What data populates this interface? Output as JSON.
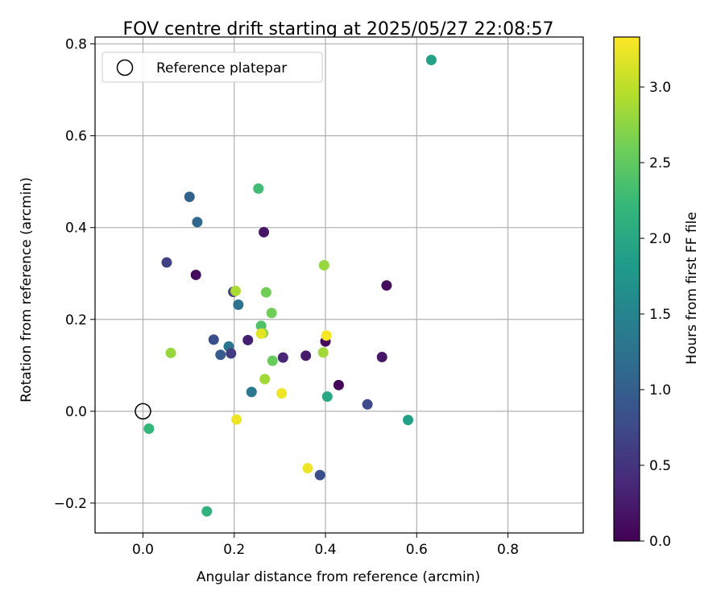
{
  "chart_data": {
    "type": "scatter",
    "title": "FOV centre drift starting at 2025/05/27 22:08:57",
    "xlabel": "Angular distance from reference (arcmin)",
    "ylabel": "Rotation from reference (arcmin)",
    "xlim": [
      -0.105,
      0.965
    ],
    "ylim": [
      -0.265,
      0.815
    ],
    "x_ticks": [
      0.0,
      0.2,
      0.4,
      0.6,
      0.8
    ],
    "x_tick_labels": [
      "0.0",
      "0.2",
      "0.4",
      "0.6",
      "0.8"
    ],
    "y_ticks": [
      -0.2,
      0.0,
      0.2,
      0.4,
      0.6,
      0.8
    ],
    "y_tick_labels": [
      "−0.2",
      "0.0",
      "0.2",
      "0.4",
      "0.6",
      "0.8"
    ],
    "grid": true,
    "legend": {
      "position": "top-left",
      "entries": [
        {
          "label": "Reference platepar",
          "marker": "hollow-circle"
        }
      ]
    },
    "reference_point": {
      "x": 0.0,
      "y": 0.0
    },
    "colorbar": {
      "label": "Hours from first FF file",
      "colormap": "viridis",
      "range": [
        0.0,
        3.33
      ],
      "ticks": [
        0.0,
        0.5,
        1.0,
        1.5,
        2.0,
        2.5,
        3.0
      ],
      "tick_labels": [
        "0.0",
        "0.5",
        "1.0",
        "1.5",
        "2.0",
        "2.5",
        "3.0"
      ]
    },
    "points": [
      {
        "x": 0.632,
        "y": 0.765,
        "c": 1.9
      },
      {
        "x": 0.253,
        "y": 0.485,
        "c": 2.3
      },
      {
        "x": 0.102,
        "y": 0.467,
        "c": 1.05
      },
      {
        "x": 0.119,
        "y": 0.412,
        "c": 1.1
      },
      {
        "x": 0.265,
        "y": 0.39,
        "c": 0.2
      },
      {
        "x": 0.052,
        "y": 0.324,
        "c": 0.65
      },
      {
        "x": 0.397,
        "y": 0.318,
        "c": 2.8
      },
      {
        "x": 0.116,
        "y": 0.297,
        "c": 0.1
      },
      {
        "x": 0.534,
        "y": 0.274,
        "c": 0.1
      },
      {
        "x": 0.198,
        "y": 0.26,
        "c": 0.6
      },
      {
        "x": 0.203,
        "y": 0.262,
        "c": 2.9
      },
      {
        "x": 0.27,
        "y": 0.259,
        "c": 2.6
      },
      {
        "x": 0.209,
        "y": 0.232,
        "c": 1.25
      },
      {
        "x": 0.282,
        "y": 0.214,
        "c": 2.6
      },
      {
        "x": 0.259,
        "y": 0.186,
        "c": 2.4
      },
      {
        "x": 0.263,
        "y": 0.17,
        "c": 2.7
      },
      {
        "x": 0.259,
        "y": 0.169,
        "c": 3.2
      },
      {
        "x": 0.155,
        "y": 0.156,
        "c": 0.8
      },
      {
        "x": 0.23,
        "y": 0.155,
        "c": 0.3
      },
      {
        "x": 0.4,
        "y": 0.152,
        "c": 0.1
      },
      {
        "x": 0.402,
        "y": 0.165,
        "c": 3.3
      },
      {
        "x": 0.188,
        "y": 0.141,
        "c": 1.3
      },
      {
        "x": 0.061,
        "y": 0.127,
        "c": 2.8
      },
      {
        "x": 0.395,
        "y": 0.128,
        "c": 2.85
      },
      {
        "x": 0.17,
        "y": 0.123,
        "c": 0.95
      },
      {
        "x": 0.193,
        "y": 0.126,
        "c": 0.6
      },
      {
        "x": 0.357,
        "y": 0.121,
        "c": 0.25
      },
      {
        "x": 0.307,
        "y": 0.117,
        "c": 0.35
      },
      {
        "x": 0.524,
        "y": 0.118,
        "c": 0.2
      },
      {
        "x": 0.284,
        "y": 0.11,
        "c": 2.55
      },
      {
        "x": 0.267,
        "y": 0.07,
        "c": 2.85
      },
      {
        "x": 0.429,
        "y": 0.057,
        "c": 0.05
      },
      {
        "x": 0.238,
        "y": 0.042,
        "c": 1.35
      },
      {
        "x": 0.304,
        "y": 0.039,
        "c": 3.25
      },
      {
        "x": 0.404,
        "y": 0.032,
        "c": 2.0
      },
      {
        "x": 0.492,
        "y": 0.015,
        "c": 0.75
      },
      {
        "x": 0.205,
        "y": -0.018,
        "c": 3.25
      },
      {
        "x": 0.581,
        "y": -0.019,
        "c": 1.9
      },
      {
        "x": 0.013,
        "y": -0.038,
        "c": 2.2
      },
      {
        "x": 0.361,
        "y": -0.124,
        "c": 3.25
      },
      {
        "x": 0.388,
        "y": -0.139,
        "c": 0.8
      },
      {
        "x": 0.14,
        "y": -0.218,
        "c": 2.15
      }
    ]
  }
}
